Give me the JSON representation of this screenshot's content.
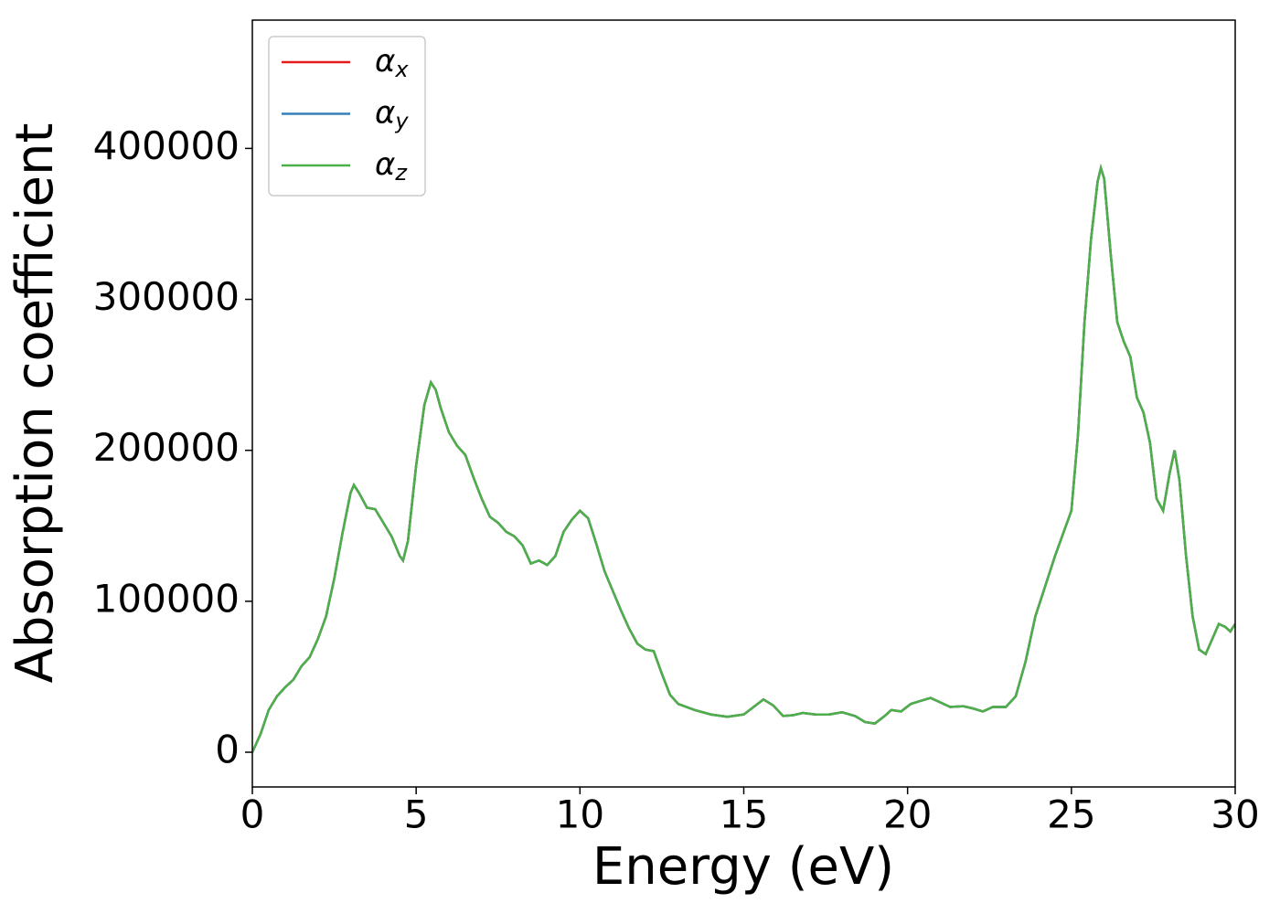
{
  "chart_data": {
    "type": "line",
    "xlabel": "Energy (eV)",
    "ylabel": "Absorption coefficient",
    "x": [
      0,
      0.25,
      0.5,
      0.75,
      1,
      1.25,
      1.5,
      1.75,
      2,
      2.25,
      2.5,
      2.75,
      3,
      3.1,
      3.25,
      3.5,
      3.75,
      4,
      4.25,
      4.5,
      4.6,
      4.75,
      5,
      5.25,
      5.45,
      5.6,
      5.75,
      6,
      6.25,
      6.5,
      6.75,
      7,
      7.25,
      7.5,
      7.75,
      8,
      8.25,
      8.5,
      8.75,
      9,
      9.25,
      9.5,
      9.75,
      10,
      10.25,
      10.5,
      10.75,
      11,
      11.25,
      11.5,
      11.75,
      12,
      12.25,
      12.5,
      12.75,
      13,
      13.5,
      14,
      14.5,
      15,
      15.3,
      15.6,
      15.9,
      16.2,
      16.5,
      16.8,
      17.2,
      17.6,
      18,
      18.4,
      18.7,
      19,
      19.3,
      19.5,
      19.8,
      20.1,
      20.4,
      20.7,
      21,
      21.3,
      21.7,
      22,
      22.3,
      22.6,
      23,
      23.3,
      23.6,
      23.9,
      24.2,
      24.5,
      24.8,
      25,
      25.2,
      25.4,
      25.6,
      25.8,
      25.9,
      26,
      26.2,
      26.4,
      26.6,
      26.8,
      27,
      27.2,
      27.4,
      27.6,
      27.8,
      28,
      28.15,
      28.3,
      28.5,
      28.7,
      28.9,
      29.1,
      29.3,
      29.5,
      29.7,
      29.85,
      30
    ],
    "series": [
      {
        "name": "αx",
        "color": "#e41a1c",
        "values": [
          0,
          12000,
          28000,
          37000,
          43000,
          48000,
          57000,
          63000,
          75000,
          90000,
          115000,
          145000,
          172000,
          177000,
          172000,
          162000,
          161000,
          152000,
          143000,
          130000,
          127000,
          140000,
          190000,
          230000,
          245000,
          240000,
          228000,
          212000,
          203000,
          197000,
          182000,
          168000,
          156000,
          152000,
          146000,
          143000,
          137000,
          125000,
          127000,
          124000,
          130000,
          146000,
          154000,
          160000,
          155000,
          138000,
          120000,
          107000,
          94000,
          82000,
          72000,
          68000,
          67000,
          52000,
          38000,
          32000,
          28000,
          25000,
          23500,
          25000,
          30000,
          35000,
          31000,
          24000,
          24500,
          26000,
          25000,
          25000,
          26500,
          24000,
          20000,
          19000,
          24000,
          28000,
          27000,
          32000,
          34000,
          36000,
          33000,
          30000,
          30500,
          29000,
          27000,
          30000,
          30000,
          37000,
          60000,
          90000,
          110000,
          130000,
          148000,
          160000,
          210000,
          285000,
          340000,
          378000,
          387000,
          380000,
          330000,
          285000,
          272000,
          262000,
          235000,
          225000,
          205000,
          168000,
          160000,
          185000,
          200000,
          180000,
          130000,
          90000,
          68000,
          65000,
          75000,
          85000,
          83000,
          80000,
          85000
        ]
      },
      {
        "name": "αy",
        "color": "#377eb8",
        "values": [
          0,
          12000,
          28000,
          37000,
          43000,
          48000,
          57000,
          63000,
          75000,
          90000,
          115000,
          145000,
          172000,
          177000,
          172000,
          162000,
          161000,
          152000,
          143000,
          130000,
          127000,
          140000,
          190000,
          230000,
          245000,
          240000,
          228000,
          212000,
          203000,
          197000,
          182000,
          168000,
          156000,
          152000,
          146000,
          143000,
          137000,
          125000,
          127000,
          124000,
          130000,
          146000,
          154000,
          160000,
          155000,
          138000,
          120000,
          107000,
          94000,
          82000,
          72000,
          68000,
          67000,
          52000,
          38000,
          32000,
          28000,
          25000,
          23500,
          25000,
          30000,
          35000,
          31000,
          24000,
          24500,
          26000,
          25000,
          25000,
          26500,
          24000,
          20000,
          19000,
          24000,
          28000,
          27000,
          32000,
          34000,
          36000,
          33000,
          30000,
          30500,
          29000,
          27000,
          30000,
          30000,
          37000,
          60000,
          90000,
          110000,
          130000,
          148000,
          160000,
          210000,
          285000,
          340000,
          378000,
          387000,
          380000,
          330000,
          285000,
          272000,
          262000,
          235000,
          225000,
          205000,
          168000,
          160000,
          185000,
          200000,
          180000,
          130000,
          90000,
          68000,
          65000,
          75000,
          85000,
          83000,
          80000,
          85000
        ]
      },
      {
        "name": "αz",
        "color": "#4daf4a",
        "values": [
          0,
          12000,
          28000,
          37000,
          43000,
          48000,
          57000,
          63000,
          75000,
          90000,
          115000,
          145000,
          172000,
          177000,
          172000,
          162000,
          161000,
          152000,
          143000,
          130000,
          127000,
          140000,
          190000,
          230000,
          245000,
          240000,
          228000,
          212000,
          203000,
          197000,
          182000,
          168000,
          156000,
          152000,
          146000,
          143000,
          137000,
          125000,
          127000,
          124000,
          130000,
          146000,
          154000,
          160000,
          155000,
          138000,
          120000,
          107000,
          94000,
          82000,
          72000,
          68000,
          67000,
          52000,
          38000,
          32000,
          28000,
          25000,
          23500,
          25000,
          30000,
          35000,
          31000,
          24000,
          24500,
          26000,
          25000,
          25000,
          26500,
          24000,
          20000,
          19000,
          24000,
          28000,
          27000,
          32000,
          34000,
          36000,
          33000,
          30000,
          30500,
          29000,
          27000,
          30000,
          30000,
          37000,
          60000,
          90000,
          110000,
          130000,
          148000,
          160000,
          210000,
          285000,
          340000,
          378000,
          387000,
          380000,
          330000,
          285000,
          272000,
          262000,
          235000,
          225000,
          205000,
          168000,
          160000,
          185000,
          200000,
          180000,
          130000,
          90000,
          68000,
          65000,
          75000,
          85000,
          83000,
          80000,
          85000
        ]
      }
    ],
    "xlim": [
      0,
      30
    ],
    "xticks": [
      0,
      5,
      10,
      15,
      20,
      25,
      30
    ],
    "ylim": [
      -23000,
      485000
    ],
    "yticks": [
      0,
      100000,
      200000,
      300000,
      400000
    ],
    "grid": false,
    "legend": "upper left"
  }
}
